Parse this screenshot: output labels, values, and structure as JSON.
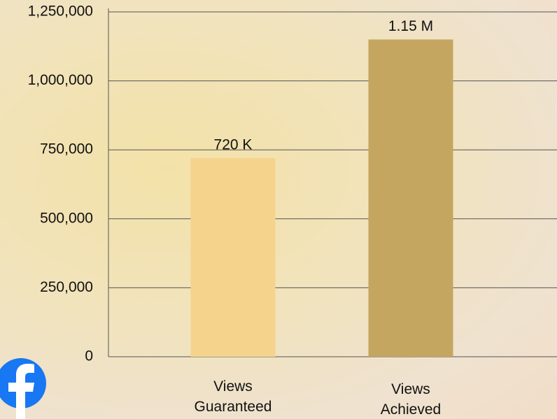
{
  "chart_data": {
    "type": "bar",
    "categories": [
      "Views Guaranteed",
      "Views Achieved"
    ],
    "values": [
      720000,
      1150000
    ],
    "value_labels": [
      "720 K",
      "1.15 M"
    ],
    "colors": [
      "#f5d38d",
      "#c4a660"
    ],
    "ylim": [
      0,
      1250000
    ],
    "yticks": [
      0,
      {
        "value": 250000,
        "label": "250,000"
      },
      {
        "value": 500000,
        "label": "500,000"
      },
      {
        "value": 750000,
        "label": "750,000"
      },
      {
        "value": 1000000,
        "label": "1,000,000"
      },
      {
        "value": 1250000,
        "label": "1,250,000"
      }
    ],
    "grid": true
  }
}
